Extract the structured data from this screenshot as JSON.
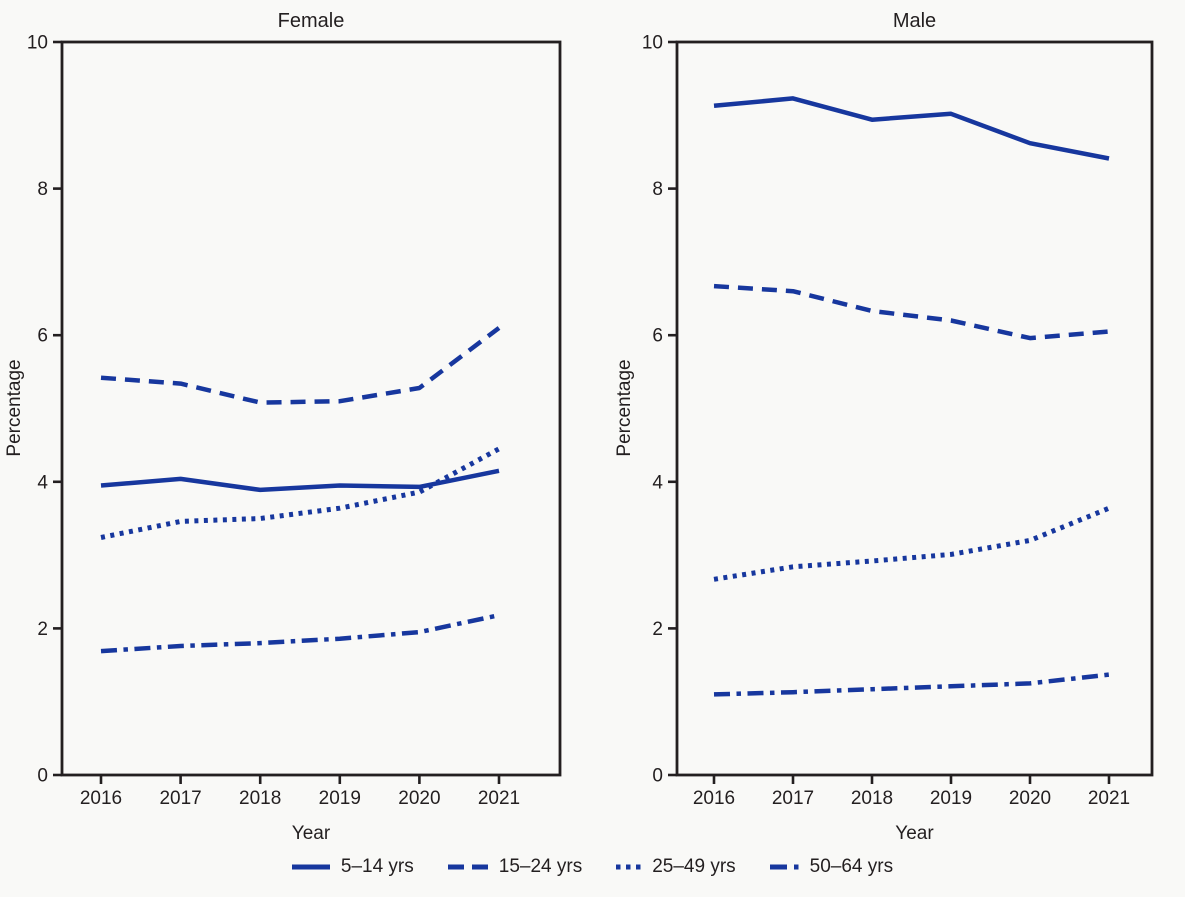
{
  "colors": {
    "line_blue": "#17379E",
    "axis_and_text": "#231F20",
    "background": "#F9F9F7"
  },
  "legend": [
    {
      "label": "5–14 yrs",
      "style": "solid"
    },
    {
      "label": "15–24 yrs",
      "style": "dashed"
    },
    {
      "label": "25–49 yrs",
      "style": "dotted"
    },
    {
      "label": "50–64 yrs",
      "style": "dashdot"
    }
  ],
  "chart_data": [
    {
      "type": "line",
      "title": "Female",
      "xlabel": "Year",
      "ylabel": "Percentage",
      "x": [
        2016,
        2017,
        2018,
        2019,
        2020,
        2021
      ],
      "ylim": [
        0,
        10
      ],
      "yticks": [
        0,
        2,
        4,
        6,
        8,
        10
      ],
      "grid": false,
      "legend_position": "bottom",
      "series": [
        {
          "name": "5–14 yrs",
          "style": "solid",
          "values": [
            3.95,
            4.04,
            3.89,
            3.95,
            3.93,
            4.15
          ]
        },
        {
          "name": "15–24 yrs",
          "style": "dashed",
          "values": [
            5.42,
            5.34,
            5.08,
            5.1,
            5.28,
            6.1
          ]
        },
        {
          "name": "25–49 yrs",
          "style": "dotted",
          "values": [
            3.24,
            3.46,
            3.5,
            3.64,
            3.86,
            4.45
          ]
        },
        {
          "name": "50–64 yrs",
          "style": "dashdot",
          "values": [
            1.69,
            1.76,
            1.8,
            1.86,
            1.95,
            2.18
          ]
        }
      ]
    },
    {
      "type": "line",
      "title": "Male",
      "xlabel": "Year",
      "ylabel": "Percentage",
      "x": [
        2016,
        2017,
        2018,
        2019,
        2020,
        2021
      ],
      "ylim": [
        0,
        10
      ],
      "yticks": [
        0,
        2,
        4,
        6,
        8,
        10
      ],
      "grid": false,
      "legend_position": "bottom",
      "series": [
        {
          "name": "5–14 yrs",
          "style": "solid",
          "values": [
            9.13,
            9.23,
            8.94,
            9.02,
            8.62,
            8.41
          ]
        },
        {
          "name": "15–24 yrs",
          "style": "dashed",
          "values": [
            6.67,
            6.6,
            6.33,
            6.2,
            5.96,
            6.05
          ]
        },
        {
          "name": "25–49 yrs",
          "style": "dotted",
          "values": [
            2.67,
            2.84,
            2.92,
            3.01,
            3.2,
            3.64
          ]
        },
        {
          "name": "50–64 yrs",
          "style": "dashdot",
          "values": [
            1.1,
            1.13,
            1.17,
            1.21,
            1.25,
            1.37
          ]
        }
      ]
    }
  ]
}
